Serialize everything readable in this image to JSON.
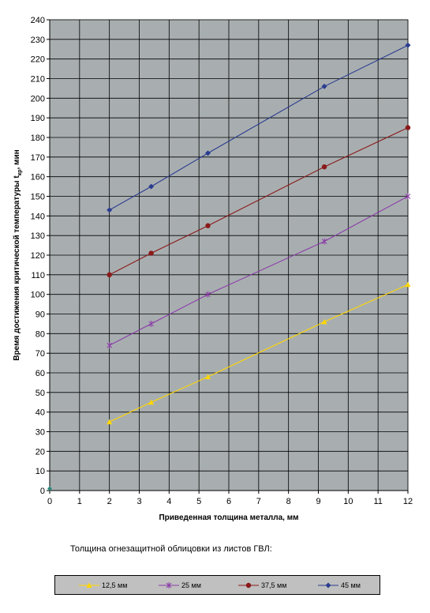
{
  "chart_data": {
    "type": "line",
    "ylabel_main": "Время достижения критической температуры t",
    "ylabel_sub": "кр",
    "ylabel_tail": ", мин",
    "xlabel": "Приведенная толщина металла, мм",
    "xlim": [
      0,
      12
    ],
    "ylim": [
      0,
      240
    ],
    "x_ticks": [
      "0",
      "1",
      "2",
      "3",
      "4",
      "5",
      "6",
      "7",
      "8",
      "9",
      "10",
      "11",
      "12"
    ],
    "y_ticks": [
      "0",
      "10",
      "20",
      "30",
      "40",
      "50",
      "60",
      "70",
      "80",
      "90",
      "100",
      "110",
      "120",
      "130",
      "140",
      "150",
      "160",
      "170",
      "180",
      "190",
      "200",
      "210",
      "220",
      "230",
      "240"
    ],
    "grid": true,
    "origin_point": {
      "x": 0,
      "y": 1
    },
    "series": [
      {
        "name": "12,5 мм",
        "color": "#ffd700",
        "marker": "triangle",
        "x": [
          2,
          3.4,
          5.3,
          9.2,
          12
        ],
        "values": [
          35,
          45,
          58,
          86,
          105
        ]
      },
      {
        "name": "25 мм",
        "color": "#8b3da8",
        "marker": "star",
        "x": [
          2,
          3.4,
          5.3,
          9.2,
          12
        ],
        "values": [
          74,
          85,
          100,
          127,
          150
        ]
      },
      {
        "name": "37,5 мм",
        "color": "#8b1a1a",
        "marker": "circle",
        "x": [
          2,
          3.4,
          5.3,
          9.2,
          12
        ],
        "values": [
          110,
          121,
          135,
          165,
          185
        ]
      },
      {
        "name": "45 мм",
        "color": "#2b3d8f",
        "marker": "diamond",
        "x": [
          2,
          3.4,
          5.3,
          9.2,
          12
        ],
        "values": [
          143,
          155,
          172,
          206,
          227
        ]
      }
    ],
    "plot_background": "#a8aeb0",
    "grid_color": "#000000"
  },
  "caption": "Толщина огнезащитной облицовки из листов ГВЛ:",
  "legend_background": "#c0c0c0"
}
